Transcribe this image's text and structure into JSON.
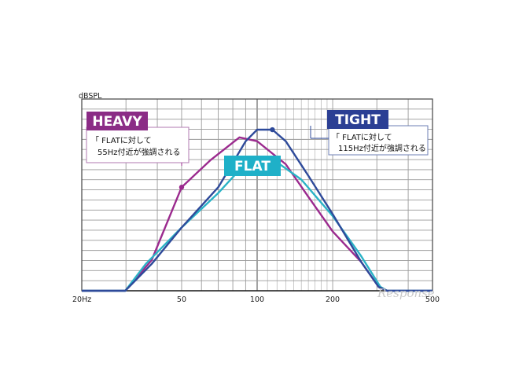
{
  "chart_data": {
    "type": "line",
    "xscale": "log",
    "xlim": [
      20,
      500
    ],
    "ylabel": "dBSPL",
    "xticks": [
      {
        "value": 20,
        "label": "20Hz"
      },
      {
        "value": 50,
        "label": "50"
      },
      {
        "value": 100,
        "label": "100"
      },
      {
        "value": 200,
        "label": "200"
      },
      {
        "value": 500,
        "label": "500"
      }
    ],
    "grid": true,
    "series": [
      {
        "name": "HEAVY",
        "color": "#9b2a8e",
        "points": [
          [
            20,
            0
          ],
          [
            29.8,
            0
          ],
          [
            38,
            16
          ],
          [
            50,
            54
          ],
          [
            65,
            68
          ],
          [
            85,
            80
          ],
          [
            100,
            78
          ],
          [
            130,
            66
          ],
          [
            160,
            49
          ],
          [
            200,
            31
          ],
          [
            260,
            15
          ],
          [
            305,
            2
          ],
          [
            330,
            0
          ],
          [
            500,
            0
          ]
        ]
      },
      {
        "name": "FLAT",
        "color": "#2bb3c6",
        "points": [
          [
            20,
            0
          ],
          [
            29.8,
            0
          ],
          [
            36,
            14
          ],
          [
            50,
            33
          ],
          [
            70,
            51
          ],
          [
            85,
            63
          ],
          [
            100,
            68
          ],
          [
            120,
            67
          ],
          [
            150,
            58
          ],
          [
            200,
            39
          ],
          [
            260,
            18
          ],
          [
            310,
            2
          ],
          [
            330,
            0
          ],
          [
            500,
            0
          ]
        ]
      },
      {
        "name": "TIGHT",
        "color": "#2e4a9a",
        "points": [
          [
            20,
            0
          ],
          [
            29.8,
            0
          ],
          [
            38,
            14
          ],
          [
            50,
            33
          ],
          [
            70,
            54
          ],
          [
            90,
            78
          ],
          [
            100,
            84
          ],
          [
            115,
            84
          ],
          [
            130,
            78
          ],
          [
            160,
            60
          ],
          [
            200,
            40
          ],
          [
            260,
            15
          ],
          [
            305,
            2
          ],
          [
            330,
            0
          ],
          [
            500,
            0
          ]
        ]
      }
    ],
    "markers": [
      {
        "series": "HEAVY",
        "x": 50,
        "y": 54
      },
      {
        "series": "TIGHT",
        "x": 115,
        "y": 84
      }
    ],
    "annotations": [
      {
        "tag": "HEAVY",
        "tag_color": "#8b2c86",
        "text_lines": [
          "「 FLATに対して",
          "55Hz付近が強調される"
        ],
        "border_color": "#9b2a8e"
      },
      {
        "tag": "FLAT",
        "tag_color": "#1fb0c8"
      },
      {
        "tag": "TIGHT",
        "tag_color": "#2b3f94",
        "text_lines": [
          "「 FLATに対して",
          "115Hz付近が強調される"
        ],
        "border_color": "#2e4a9a"
      }
    ]
  },
  "watermark": "Response."
}
